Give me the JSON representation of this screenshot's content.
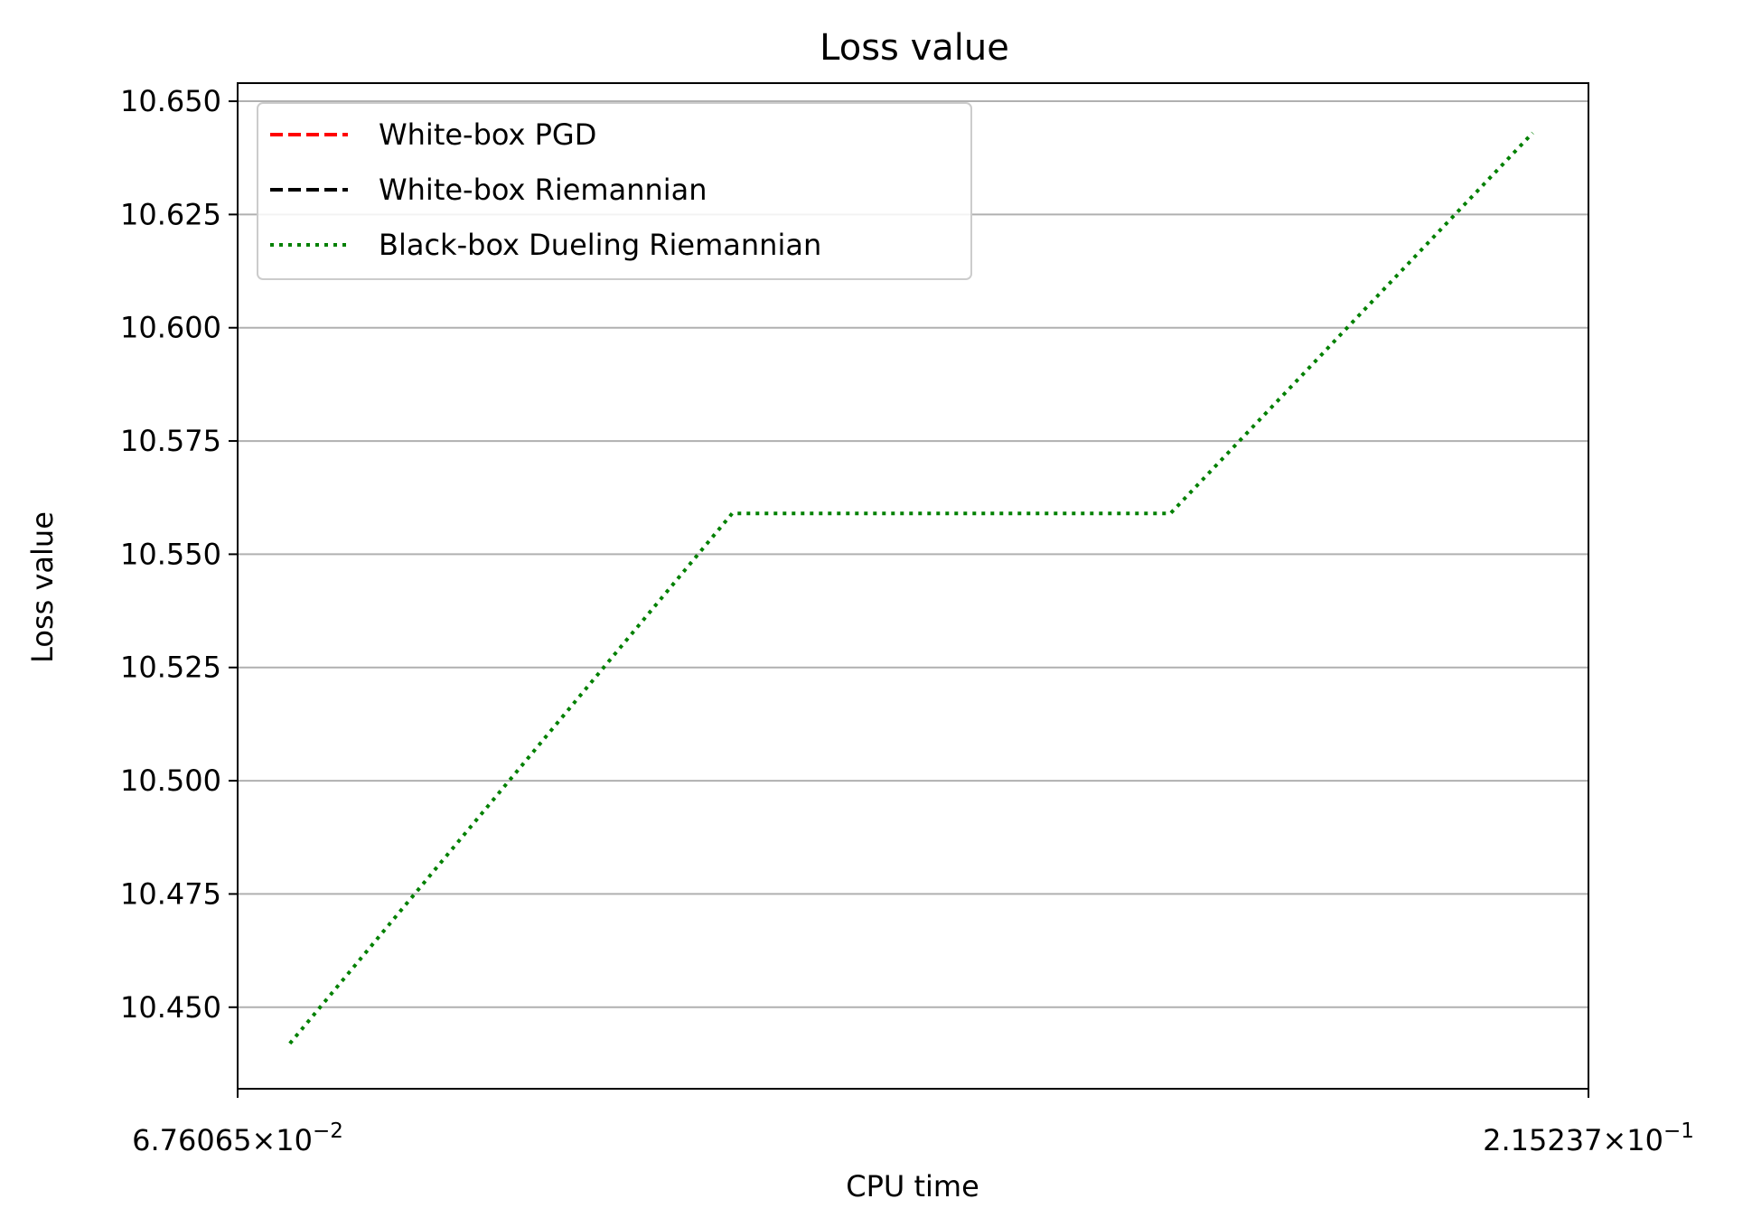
{
  "chart_data": {
    "type": "line",
    "title": "Loss value",
    "xlabel": "CPU time",
    "ylabel": "Loss value",
    "x_scale": "log",
    "xlim": [
      0.0676065,
      0.215237
    ],
    "ylim": [
      10.432,
      10.654
    ],
    "x_ticks": [
      {
        "value": 0.0676065,
        "mantissa": "6.76065",
        "exponent": "−2"
      },
      {
        "value": 0.215237,
        "mantissa": "2.15237",
        "exponent": "−1"
      }
    ],
    "y_ticks": [
      10.45,
      10.475,
      10.5,
      10.525,
      10.55,
      10.575,
      10.6,
      10.625,
      10.65
    ],
    "y_tick_labels": [
      "10.450",
      "10.475",
      "10.500",
      "10.525",
      "10.550",
      "10.575",
      "10.600",
      "10.625",
      "10.650"
    ],
    "grid": {
      "y": true,
      "x": false
    },
    "legend_position": "top-left",
    "series": [
      {
        "name": "White-box PGD",
        "color": "#ff0000",
        "style": "dashed",
        "x": [],
        "y": []
      },
      {
        "name": "White-box Riemannian",
        "color": "#000000",
        "style": "dashed",
        "x": [],
        "y": []
      },
      {
        "name": "Black-box Dueling Riemannian",
        "color": "#008000",
        "style": "dotted",
        "x": [
          0.0707,
          0.1033,
          0.1504,
          0.2052
        ],
        "y": [
          10.442,
          10.559,
          10.559,
          10.643
        ]
      }
    ]
  }
}
